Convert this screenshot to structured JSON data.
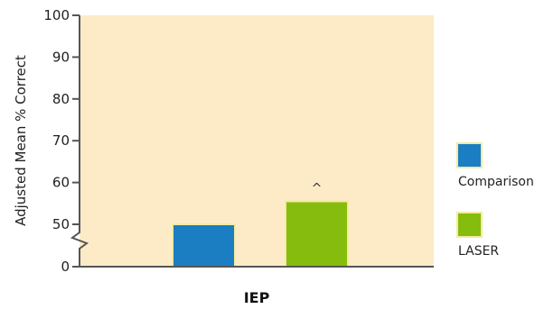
{
  "chart_data": {
    "type": "bar",
    "title": "",
    "xlabel": "",
    "ylabel": "Adjusted Mean % Correct",
    "category": "IEP",
    "ylim": [
      0,
      100
    ],
    "yticks": [
      "0",
      "50",
      "60",
      "70",
      "80",
      "90",
      "100"
    ],
    "y_axis_break": true,
    "grid": false,
    "legend_position": "right",
    "background_color": "#fdebc8",
    "series": [
      {
        "name": "Comparison",
        "value": 50,
        "color": "#1b7dc2"
      },
      {
        "name": "LASER",
        "value": 55.5,
        "color": "#86bc0d",
        "annotation": "^"
      }
    ]
  }
}
